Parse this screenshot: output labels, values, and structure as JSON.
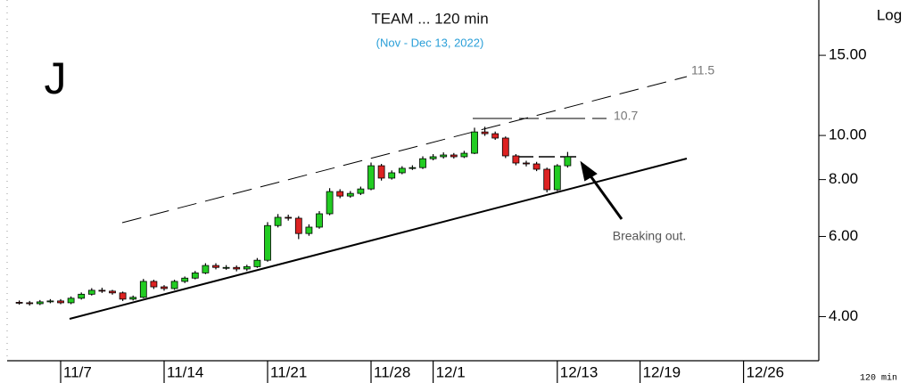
{
  "chart_data": {
    "type": "candlestick",
    "title": "TEAM ... 120 min",
    "subtitle": "(Nov - Dec 13, 2022)",
    "corner_label": "J",
    "scale_label": "Log",
    "footer": "120 min",
    "annotations": {
      "upper_channel": "11.5",
      "resistance": "10.7",
      "note": "Breaking out."
    },
    "log_scale": true,
    "up_color": "#22cc22",
    "down_color": "#dd2222",
    "ylim": [
      3.2,
      19.4
    ],
    "yticks": [
      {
        "value": 4,
        "label": "4.00"
      },
      {
        "value": 6,
        "label": "6.00"
      },
      {
        "value": 8,
        "label": "8.00"
      },
      {
        "value": 10,
        "label": "10.00"
      },
      {
        "value": 15,
        "label": "15.00"
      }
    ],
    "categories": [
      null,
      null,
      null,
      null,
      "11/7",
      null,
      null,
      null,
      null,
      null,
      null,
      null,
      null,
      null,
      "11/14",
      null,
      null,
      null,
      null,
      null,
      null,
      null,
      null,
      null,
      "11/21",
      null,
      null,
      null,
      null,
      null,
      null,
      null,
      null,
      null,
      "11/28",
      null,
      null,
      null,
      null,
      null,
      "12/1",
      null,
      null,
      null,
      null,
      null,
      null,
      null,
      null,
      null,
      null,
      null,
      "12/13",
      null,
      null,
      null,
      null,
      null,
      null,
      null,
      "12/19",
      null,
      null,
      null,
      null,
      null,
      null,
      null,
      null,
      null,
      "12/26",
      null,
      null,
      null,
      null,
      null,
      null,
      null
    ],
    "open": [
      4.3,
      4.29,
      4.27,
      4.31,
      4.33,
      4.29,
      4.39,
      4.48,
      4.57,
      4.55,
      4.51,
      4.37,
      4.41,
      4.78,
      4.65,
      4.61,
      4.78,
      4.86,
      4.99,
      5.18,
      5.13,
      5.13,
      5.09,
      5.15,
      5.32,
      6.34,
      6.61,
      6.58,
      6.09,
      6.29,
      6.73,
      7.53,
      7.36,
      7.46,
      7.63,
      8.58,
      8.06,
      8.28,
      8.47,
      8.5,
      8.89,
      8.98,
      9.06,
      8.98,
      9.14,
      10.18,
      10.09,
      9.87,
      9.02,
      8.7,
      8.66,
      8.43,
      7.6,
      8.58,
      null,
      null,
      null,
      null,
      null,
      null,
      null,
      null,
      null,
      null,
      null,
      null,
      null,
      null,
      null,
      null,
      null,
      null,
      null,
      null,
      null,
      null,
      null,
      null
    ],
    "high": [
      4.34,
      4.33,
      4.35,
      4.37,
      4.37,
      4.43,
      4.52,
      4.62,
      4.63,
      4.58,
      4.54,
      4.45,
      4.84,
      4.82,
      4.69,
      4.82,
      4.9,
      5.04,
      5.24,
      5.24,
      5.19,
      5.18,
      5.2,
      5.38,
      6.45,
      6.72,
      6.7,
      6.65,
      6.38,
      6.82,
      7.66,
      7.62,
      7.55,
      7.72,
      8.72,
      8.66,
      8.38,
      8.56,
      8.6,
      9.0,
      9.1,
      9.18,
      9.15,
      9.25,
      10.4,
      10.45,
      10.2,
      9.95,
      9.1,
      8.8,
      8.75,
      8.5,
      8.65,
      9.2,
      null,
      null,
      null,
      null,
      null,
      null,
      null,
      null,
      null,
      null,
      null,
      null,
      null,
      null,
      null,
      null,
      null,
      null,
      null,
      null,
      null,
      null,
      null,
      null
    ],
    "low": [
      4.25,
      4.23,
      4.24,
      4.28,
      4.26,
      4.26,
      4.36,
      4.45,
      4.51,
      4.47,
      4.33,
      4.34,
      4.39,
      4.6,
      4.56,
      4.58,
      4.74,
      4.83,
      4.96,
      5.08,
      5.07,
      5.03,
      5.04,
      5.12,
      5.28,
      6.28,
      6.5,
      5.92,
      6.02,
      6.24,
      6.68,
      7.28,
      7.3,
      7.4,
      7.58,
      7.96,
      8.0,
      8.22,
      8.4,
      8.44,
      8.82,
      8.9,
      8.9,
      8.92,
      9.1,
      9.98,
      9.78,
      8.92,
      8.6,
      8.55,
      8.35,
      7.5,
      7.55,
      8.5,
      null,
      null,
      null,
      null,
      null,
      null,
      null,
      null,
      null,
      null,
      null,
      null,
      null,
      null,
      null,
      null,
      null,
      null,
      null,
      null,
      null,
      null,
      null,
      null
    ],
    "close": [
      4.29,
      4.27,
      4.31,
      4.33,
      4.29,
      4.39,
      4.48,
      4.57,
      4.55,
      4.51,
      4.37,
      4.41,
      4.78,
      4.65,
      4.61,
      4.78,
      4.86,
      4.99,
      5.18,
      5.13,
      5.13,
      5.09,
      5.15,
      5.32,
      6.34,
      6.61,
      6.58,
      6.09,
      6.29,
      6.73,
      7.53,
      7.36,
      7.46,
      7.63,
      8.58,
      8.06,
      8.28,
      8.47,
      8.5,
      8.89,
      8.98,
      9.06,
      8.98,
      9.14,
      10.18,
      10.09,
      9.87,
      9.02,
      8.7,
      8.66,
      8.43,
      7.6,
      8.58,
      8.98,
      null,
      null,
      null,
      null,
      null,
      null,
      null,
      null,
      null,
      null,
      null,
      null,
      null,
      null,
      null,
      null,
      null,
      null,
      null,
      null,
      null,
      null,
      null,
      null
    ]
  }
}
